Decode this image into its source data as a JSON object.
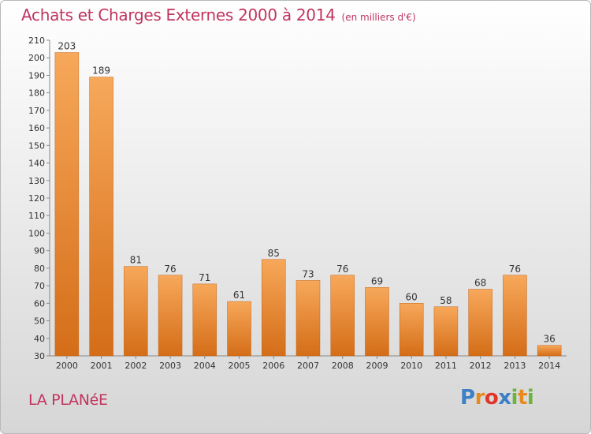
{
  "chart_data": {
    "type": "bar",
    "title": "Achats et Charges Externes 2000 à 2014",
    "subtitle": "(en milliers d'€)",
    "categories": [
      "2000",
      "2001",
      "2002",
      "2003",
      "2004",
      "2005",
      "2006",
      "2007",
      "2008",
      "2009",
      "2010",
      "2011",
      "2012",
      "2013",
      "2014"
    ],
    "values": [
      203,
      189,
      81,
      76,
      71,
      61,
      85,
      73,
      76,
      69,
      60,
      58,
      68,
      76,
      36
    ],
    "ylim": [
      30,
      210
    ],
    "ytick_step": 10,
    "xlabel": "",
    "ylabel": "",
    "grid": false,
    "bar_color_top": "#f7a85a",
    "bar_color_bottom": "#d46d18"
  },
  "commune": "LA PLANéE",
  "logo": {
    "text": "Proxiti",
    "letters": [
      "P",
      "r",
      "o",
      "x",
      "i",
      "t",
      "i"
    ],
    "colors": [
      "#3d7fc4",
      "#e88b1f",
      "#e2352a",
      "#3d7fc4",
      "#6cb33f",
      "#e88b1f",
      "#6cb33f"
    ]
  }
}
